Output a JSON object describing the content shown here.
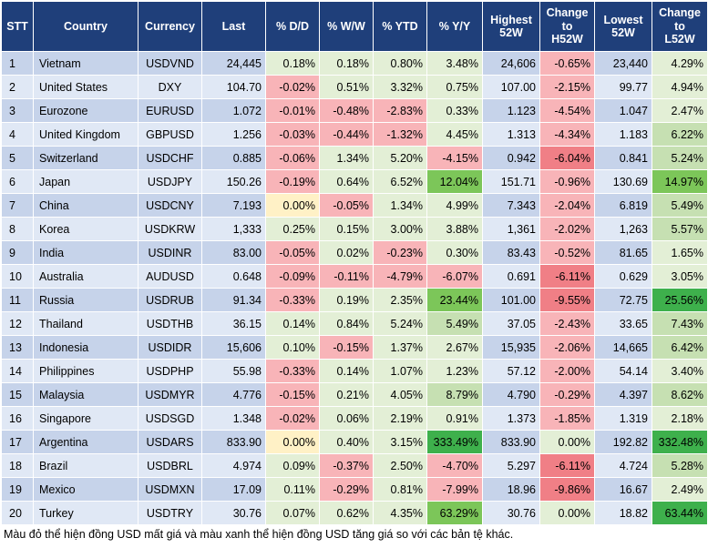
{
  "headers": [
    "STT",
    "Country",
    "Currency",
    "Last",
    "% D/D",
    "% W/W",
    "% YTD",
    "% Y/Y",
    "Highest 52W",
    "Change to H52W",
    "Lowest 52W",
    "Change to L52W"
  ],
  "rows": [
    [
      "1",
      "Vietnam",
      "USDVND",
      "24,445",
      "0.18%",
      "0.18%",
      "0.80%",
      "3.48%",
      "24,606",
      "-0.65%",
      "23,440",
      "4.29%"
    ],
    [
      "2",
      "United States",
      "DXY",
      "104.70",
      "-0.02%",
      "0.51%",
      "3.32%",
      "0.75%",
      "107.00",
      "-2.15%",
      "99.77",
      "4.94%"
    ],
    [
      "3",
      "Eurozone",
      "EURUSD",
      "1.072",
      "-0.01%",
      "-0.48%",
      "-2.83%",
      "0.33%",
      "1.123",
      "-4.54%",
      "1.047",
      "2.47%"
    ],
    [
      "4",
      "United Kingdom",
      "GBPUSD",
      "1.256",
      "-0.03%",
      "-0.44%",
      "-1.32%",
      "4.45%",
      "1.313",
      "-4.34%",
      "1.183",
      "6.22%"
    ],
    [
      "5",
      "Switzerland",
      "USDCHF",
      "0.885",
      "-0.06%",
      "1.34%",
      "5.20%",
      "-4.15%",
      "0.942",
      "-6.04%",
      "0.841",
      "5.24%"
    ],
    [
      "6",
      "Japan",
      "USDJPY",
      "150.26",
      "-0.19%",
      "0.64%",
      "6.52%",
      "12.04%",
      "151.71",
      "-0.96%",
      "130.69",
      "14.97%"
    ],
    [
      "7",
      "China",
      "USDCNY",
      "7.193",
      "0.00%",
      "-0.05%",
      "1.34%",
      "4.99%",
      "7.343",
      "-2.04%",
      "6.819",
      "5.49%"
    ],
    [
      "8",
      "Korea",
      "USDKRW",
      "1,333",
      "0.25%",
      "0.15%",
      "3.00%",
      "3.88%",
      "1,361",
      "-2.02%",
      "1,263",
      "5.57%"
    ],
    [
      "9",
      "India",
      "USDINR",
      "83.00",
      "-0.05%",
      "0.02%",
      "-0.23%",
      "0.30%",
      "83.43",
      "-0.52%",
      "81.65",
      "1.65%"
    ],
    [
      "10",
      "Australia",
      "AUDUSD",
      "0.648",
      "-0.09%",
      "-0.11%",
      "-4.79%",
      "-6.07%",
      "0.691",
      "-6.11%",
      "0.629",
      "3.05%"
    ],
    [
      "11",
      "Russia",
      "USDRUB",
      "91.34",
      "-0.33%",
      "0.19%",
      "2.35%",
      "23.44%",
      "101.00",
      "-9.55%",
      "72.75",
      "25.56%"
    ],
    [
      "12",
      "Thailand",
      "USDTHB",
      "36.15",
      "0.14%",
      "0.84%",
      "5.24%",
      "5.49%",
      "37.05",
      "-2.43%",
      "33.65",
      "7.43%"
    ],
    [
      "13",
      "Indonesia",
      "USDIDR",
      "15,606",
      "0.10%",
      "-0.15%",
      "1.37%",
      "2.67%",
      "15,935",
      "-2.06%",
      "14,665",
      "6.42%"
    ],
    [
      "14",
      "Philippines",
      "USDPHP",
      "55.98",
      "-0.33%",
      "0.14%",
      "1.07%",
      "1.23%",
      "57.12",
      "-2.00%",
      "54.14",
      "3.40%"
    ],
    [
      "15",
      "Malaysia",
      "USDMYR",
      "4.776",
      "-0.15%",
      "0.21%",
      "4.05%",
      "8.79%",
      "4.790",
      "-0.29%",
      "4.397",
      "8.62%"
    ],
    [
      "16",
      "Singapore",
      "USDSGD",
      "1.348",
      "-0.02%",
      "0.06%",
      "2.19%",
      "0.91%",
      "1.373",
      "-1.85%",
      "1.319",
      "2.18%"
    ],
    [
      "17",
      "Argentina",
      "USDARS",
      "833.90",
      "0.00%",
      "0.40%",
      "3.15%",
      "333.49%",
      "833.90",
      "0.00%",
      "192.82",
      "332.48%"
    ],
    [
      "18",
      "Brazil",
      "USDBRL",
      "4.974",
      "0.09%",
      "-0.37%",
      "2.50%",
      "-4.70%",
      "5.297",
      "-6.11%",
      "4.724",
      "5.28%"
    ],
    [
      "19",
      "Mexico",
      "USDMXN",
      "17.09",
      "0.11%",
      "-0.29%",
      "0.81%",
      "-7.99%",
      "18.96",
      "-9.86%",
      "16.67",
      "2.49%"
    ],
    [
      "20",
      "Turkey",
      "USDTRY",
      "30.76",
      "0.07%",
      "0.62%",
      "4.35%",
      "63.29%",
      "30.76",
      "0.00%",
      "18.82",
      "63.44%"
    ]
  ],
  "footnote": "Màu đỏ thể hiện đồng USD mất giá và màu xanh thể hiện đồng USD tăng giá so với các bản tệ khác."
}
